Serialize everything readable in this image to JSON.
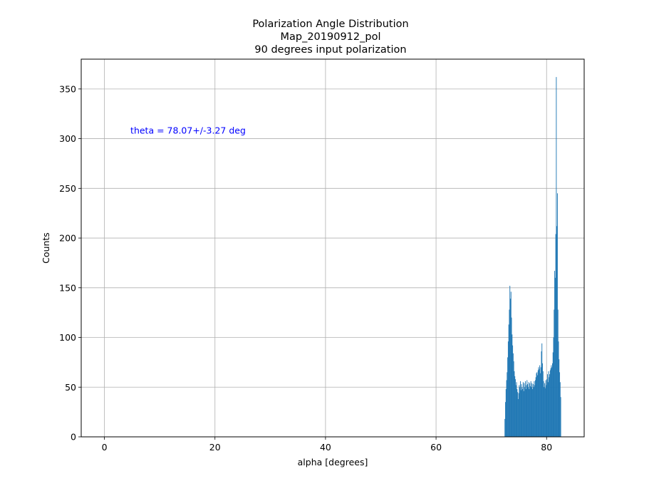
{
  "chart_data": {
    "type": "bar",
    "title": [
      "Polarization Angle Distribution",
      "Map_20190912_pol",
      "90 degrees input polarization"
    ],
    "xlabel": "alpha [degrees]",
    "ylabel": "Counts",
    "xlim": [
      -4.2,
      86.8
    ],
    "ylim": [
      0,
      380
    ],
    "xticks": [
      0,
      20,
      40,
      60,
      80
    ],
    "yticks": [
      0,
      50,
      100,
      150,
      200,
      250,
      300,
      350
    ],
    "grid": true,
    "bar_color": "#1f77b4",
    "annotation": {
      "text": "theta = 78.07+/-3.27 deg",
      "x": 4.7,
      "y": 305,
      "color": "#0000ff"
    },
    "histogram": {
      "bin_width": 0.1,
      "bin_start": [
        72.4,
        72.5,
        72.6,
        72.7,
        72.8,
        72.9,
        73.0,
        73.1,
        73.2,
        73.3,
        73.4,
        73.5,
        73.6,
        73.7,
        73.8,
        73.9,
        74.0,
        74.1,
        74.2,
        74.3,
        74.4,
        74.5,
        74.6,
        74.7,
        74.8,
        74.9,
        75.0,
        75.1,
        75.2,
        75.3,
        75.4,
        75.5,
        75.6,
        75.7,
        75.8,
        75.9,
        76.0,
        76.1,
        76.2,
        76.3,
        76.4,
        76.5,
        76.6,
        76.7,
        76.8,
        76.9,
        77.0,
        77.1,
        77.2,
        77.3,
        77.4,
        77.5,
        77.6,
        77.7,
        77.8,
        77.9,
        78.0,
        78.1,
        78.2,
        78.3,
        78.4,
        78.5,
        78.6,
        78.7,
        78.8,
        78.9,
        79.0,
        79.1,
        79.2,
        79.3,
        79.4,
        79.5,
        79.6,
        79.7,
        79.8,
        79.9,
        80.0,
        80.1,
        80.2,
        80.3,
        80.4,
        80.5,
        80.6,
        80.7,
        80.8,
        80.9,
        81.0,
        81.1,
        81.2,
        81.3,
        81.4,
        81.5,
        81.6,
        81.7,
        81.8,
        81.9,
        82.0,
        82.1,
        82.2,
        82.3,
        82.4,
        82.5
      ],
      "counts": [
        18,
        35,
        48,
        57,
        65,
        80,
        96,
        113,
        128,
        152,
        139,
        146,
        120,
        103,
        92,
        84,
        76,
        66,
        61,
        58,
        52,
        55,
        48,
        45,
        38,
        44,
        52,
        50,
        56,
        47,
        53,
        50,
        48,
        55,
        46,
        54,
        50,
        56,
        48,
        52,
        57,
        53,
        50,
        55,
        48,
        54,
        51,
        56,
        50,
        54,
        48,
        53,
        50,
        56,
        52,
        57,
        60,
        64,
        65,
        62,
        67,
        70,
        68,
        72,
        64,
        70,
        86,
        94,
        74,
        66,
        56,
        50,
        54,
        49,
        57,
        52,
        58,
        63,
        55,
        66,
        60,
        63,
        67,
        69,
        72,
        70,
        74,
        85,
        100,
        128,
        167,
        160,
        204,
        362,
        212,
        245,
        128,
        96,
        78,
        65,
        55,
        40
      ]
    }
  }
}
